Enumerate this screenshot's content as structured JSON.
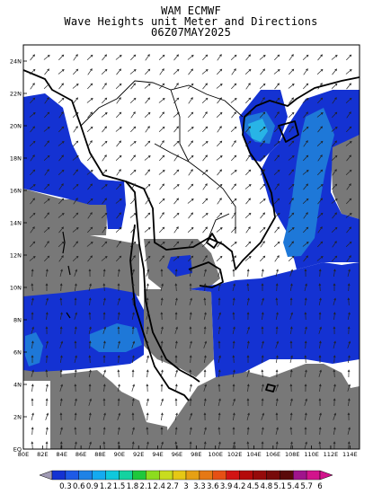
{
  "title": {
    "line1": "WAM ECMWF",
    "line2": "Wave Heights unit Meter and Directions",
    "line3": "06Z07MAY2025"
  },
  "axes": {
    "lat_ticks": [
      "24N",
      "22N",
      "20N",
      "18N",
      "16N",
      "14N",
      "12N",
      "10N",
      "8N",
      "6N",
      "4N",
      "2N",
      "EQ"
    ],
    "lon_ticks": [
      "80E",
      "82E",
      "84E",
      "86E",
      "88E",
      "90E",
      "92E",
      "94E",
      "96E",
      "98E",
      "100E",
      "102E",
      "104E",
      "106E",
      "108E",
      "110E",
      "112E",
      "114E"
    ],
    "lon_range": [
      80,
      115
    ],
    "lat_range": [
      0,
      25
    ]
  },
  "colorbar": {
    "labels": [
      "0.3",
      "0.6",
      "0.9",
      "1.2",
      "1.5",
      "1.8",
      "2.1",
      "2.4",
      "2.7",
      "3",
      "3.3",
      "3.6",
      "3.9",
      "4.2",
      "4.5",
      "4.8",
      "5.1",
      "5.4",
      "5.7",
      "6"
    ],
    "colors": [
      "#1432d2",
      "#1e5ae6",
      "#1e82e6",
      "#14aaf0",
      "#0fc8dc",
      "#14d2a0",
      "#1ec83c",
      "#8cdc1e",
      "#c8dc1e",
      "#e6c814",
      "#e6a014",
      "#e67814",
      "#e65014",
      "#d21414",
      "#b40a0a",
      "#960a0a",
      "#780a0a",
      "#5a0a0a",
      "#a0148c",
      "#d2148c"
    ]
  },
  "legend_colors": {
    "land_mask": "#787878",
    "class_0_3_0_6": "#1432d2",
    "class_0_6_0_9": "#1e78d8",
    "class_0_9_1_2": "#28b4e6",
    "background": "#ffffff"
  }
}
